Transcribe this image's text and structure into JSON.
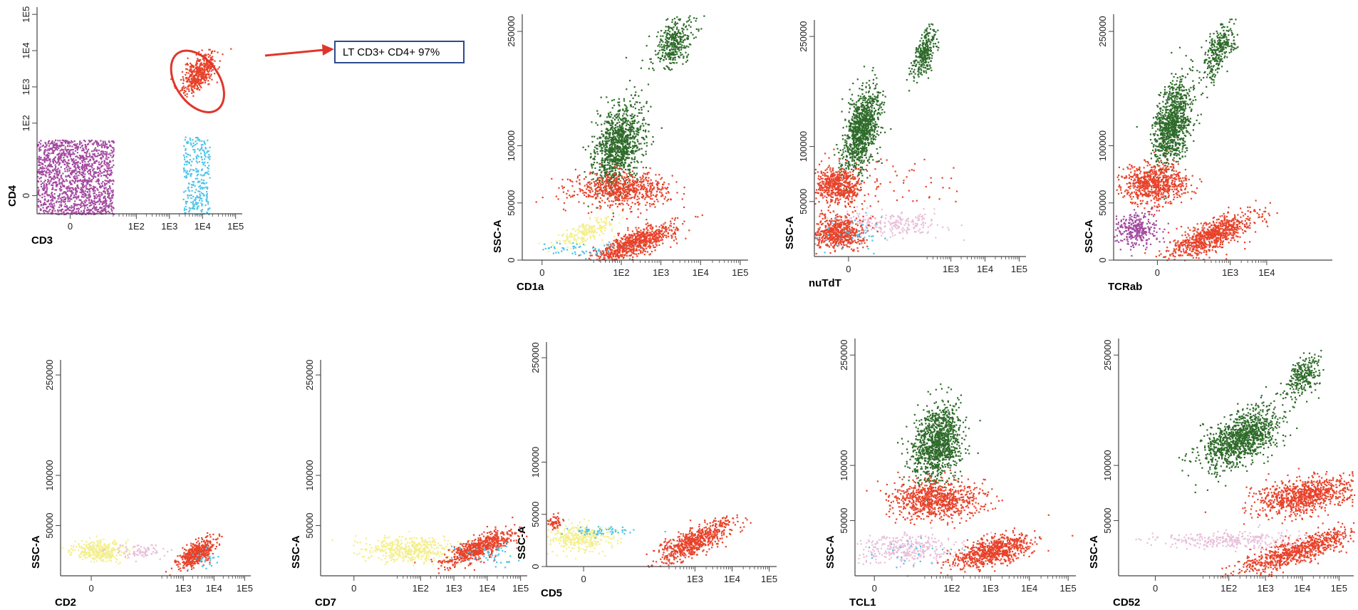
{
  "figure": {
    "annotation": "LT CD3+ CD4+ 97%",
    "colors": {
      "purple": "#a34aa0",
      "cyan": "#4ec3e8",
      "red": "#e8422a",
      "green": "#2e6b2a",
      "yellow": "#f4ef8c",
      "pink": "#e8bfd9",
      "axis": "#444444",
      "gate": "#e0362a",
      "callout_border": "#2e4a8c"
    }
  },
  "chart_data": [
    {
      "id": "cd3_cd4",
      "type": "scatter",
      "title": "",
      "xlabel": "CD3",
      "ylabel": "CD4",
      "xlim": [
        -1,
        5.2
      ],
      "ylim": [
        -0.5,
        5.2
      ],
      "xticks": [
        {
          "v": 0,
          "t": "0"
        },
        {
          "v": 2,
          "t": "1E2"
        },
        {
          "v": 3,
          "t": "1E3"
        },
        {
          "v": 4,
          "t": "1E4"
        },
        {
          "v": 5,
          "t": "1E5"
        }
      ],
      "yticks": [
        {
          "v": 0,
          "t": "0"
        },
        {
          "v": 2,
          "t": "1E2"
        },
        {
          "v": 3,
          "t": "1E3"
        },
        {
          "v": 4,
          "t": "1E4"
        },
        {
          "v": 5,
          "t": "1E5"
        }
      ],
      "gate": {
        "label": "LT CD3+ CD4+ 97%",
        "cx": 3.85,
        "cy": 3.15,
        "rx": 0.65,
        "ry": 0.95,
        "rot": -35
      },
      "series": [
        {
          "color": "purple",
          "n": 1500,
          "dist": "box",
          "x": [
            -1,
            1.3
          ],
          "y": [
            -0.5,
            1.55
          ]
        },
        {
          "color": "cyan",
          "n": 280,
          "dist": "box",
          "x": [
            3.4,
            4.2
          ],
          "y": [
            -0.5,
            1.65
          ]
        },
        {
          "color": "red",
          "n": 450,
          "dist": "ell",
          "cx": 3.9,
          "cy": 3.4,
          "rx": 0.35,
          "ry": 0.65,
          "rot": -40
        }
      ]
    },
    {
      "id": "cd1a_ssc",
      "type": "scatter",
      "title": "",
      "xlabel": "CD1a",
      "ylabel": "SSC-A",
      "xlim": [
        -0.5,
        5.2
      ],
      "ylim": [
        0,
        4.3
      ],
      "xticks": [
        {
          "v": 0,
          "t": "0"
        },
        {
          "v": 2,
          "t": "1E2"
        },
        {
          "v": 3,
          "t": "1E3"
        },
        {
          "v": 4,
          "t": "1E4"
        },
        {
          "v": 5,
          "t": "1E5"
        }
      ],
      "yticks": [
        {
          "v": 0,
          "t": "0"
        },
        {
          "v": 1,
          "t": "50000"
        },
        {
          "v": 2,
          "t": "100000"
        },
        {
          "v": 4,
          "t": "250000"
        }
      ],
      "series": [
        {
          "color": "green",
          "n": 1100,
          "dist": "ell",
          "cx": 1.9,
          "cy": 2.0,
          "rx": 0.8,
          "ry": 0.55,
          "rot": 60
        },
        {
          "color": "green",
          "n": 350,
          "dist": "ell",
          "cx": 3.3,
          "cy": 3.8,
          "rx": 0.6,
          "ry": 0.35,
          "rot": 30
        },
        {
          "color": "yellow",
          "n": 220,
          "dist": "ell",
          "cx": 1.1,
          "cy": 0.5,
          "rx": 0.8,
          "ry": 0.15,
          "rot": 15
        },
        {
          "color": "red",
          "n": 650,
          "dist": "ell",
          "cx": 2.0,
          "cy": 1.25,
          "rx": 1.2,
          "ry": 0.3,
          "rot": 0
        },
        {
          "color": "red",
          "n": 800,
          "dist": "ell",
          "cx": 2.3,
          "cy": 0.3,
          "rx": 1.1,
          "ry": 0.2,
          "rot": 15
        },
        {
          "color": "cyan",
          "n": 60,
          "dist": "ell",
          "cx": 1.0,
          "cy": 0.2,
          "rx": 1.2,
          "ry": 0.12,
          "rot": 0
        }
      ]
    },
    {
      "id": "nutdt_ssc",
      "type": "scatter",
      "title": "",
      "xlabel": "nuTdT",
      "ylabel": "SSC-A",
      "xlim": [
        -1,
        5.2
      ],
      "ylim": [
        0,
        4.3
      ],
      "xticks": [
        {
          "v": 0,
          "t": "0"
        },
        {
          "v": 3,
          "t": "1E3"
        },
        {
          "v": 4,
          "t": "1E4"
        },
        {
          "v": 5,
          "t": "1E5"
        }
      ],
      "yticks": [
        {
          "v": 1,
          "t": "50000"
        },
        {
          "v": 2,
          "t": "100000"
        },
        {
          "v": 4,
          "t": "250000"
        }
      ],
      "series": [
        {
          "color": "green",
          "n": 1000,
          "dist": "ell",
          "cx": 0.35,
          "cy": 2.3,
          "rx": 0.8,
          "ry": 0.45,
          "rot": 65
        },
        {
          "color": "green",
          "n": 300,
          "dist": "ell",
          "cx": 2.2,
          "cy": 3.7,
          "rx": 0.55,
          "ry": 0.25,
          "rot": 55
        },
        {
          "color": "red",
          "n": 550,
          "dist": "ell",
          "cx": -0.3,
          "cy": 1.3,
          "rx": 0.7,
          "ry": 0.35,
          "rot": 0
        },
        {
          "color": "red",
          "n": 40,
          "dist": "box",
          "x": [
            0.5,
            3.3
          ],
          "y": [
            1.0,
            1.8
          ]
        },
        {
          "color": "pink",
          "n": 250,
          "dist": "ell",
          "cx": 1.2,
          "cy": 0.6,
          "rx": 1.6,
          "ry": 0.2,
          "rot": 0
        },
        {
          "color": "red",
          "n": 600,
          "dist": "ell",
          "cx": -0.3,
          "cy": 0.45,
          "rx": 0.7,
          "ry": 0.3,
          "rot": 0
        },
        {
          "color": "cyan",
          "n": 50,
          "dist": "ell",
          "cx": 0.0,
          "cy": 0.4,
          "rx": 1.2,
          "ry": 0.3,
          "rot": 0
        }
      ]
    },
    {
      "id": "tcrab_ssc",
      "type": "scatter",
      "title": "",
      "xlabel": "TCRab",
      "ylabel": "SSC-A",
      "xlim": [
        -1.2,
        4.8
      ],
      "ylim": [
        0,
        4.3
      ],
      "xticks": [
        {
          "v": 0,
          "t": "0"
        },
        {
          "v": 2,
          "t": "1E3"
        },
        {
          "v": 3,
          "t": "1E4"
        }
      ],
      "yticks": [
        {
          "v": 0,
          "t": "0"
        },
        {
          "v": 1,
          "t": "50000"
        },
        {
          "v": 2,
          "t": "100000"
        },
        {
          "v": 4,
          "t": "250000"
        }
      ],
      "series": [
        {
          "color": "green",
          "n": 1000,
          "dist": "ell",
          "cx": 0.4,
          "cy": 2.4,
          "rx": 0.8,
          "ry": 0.45,
          "rot": 65
        },
        {
          "color": "green",
          "n": 300,
          "dist": "ell",
          "cx": 1.7,
          "cy": 3.7,
          "rx": 0.6,
          "ry": 0.28,
          "rot": 50
        },
        {
          "color": "red",
          "n": 700,
          "dist": "ell",
          "cx": -0.1,
          "cy": 1.35,
          "rx": 0.9,
          "ry": 0.35,
          "rot": 0
        },
        {
          "color": "purple",
          "n": 300,
          "dist": "ell",
          "cx": -0.6,
          "cy": 0.55,
          "rx": 0.6,
          "ry": 0.3,
          "rot": 0
        },
        {
          "color": "red",
          "n": 800,
          "dist": "ell",
          "cx": 1.5,
          "cy": 0.45,
          "rx": 1.2,
          "ry": 0.25,
          "rot": 15
        }
      ]
    },
    {
      "id": "cd2_ssc",
      "type": "scatter",
      "title": "",
      "xlabel": "CD2",
      "ylabel": "SSC-A",
      "xlim": [
        -1,
        5.2
      ],
      "ylim": [
        0,
        4.3
      ],
      "xticks": [
        {
          "v": 0,
          "t": "0"
        },
        {
          "v": 3,
          "t": "1E3"
        },
        {
          "v": 4,
          "t": "1E4"
        },
        {
          "v": 5,
          "t": "1E5"
        }
      ],
      "yticks": [
        {
          "v": 1,
          "t": "50000"
        },
        {
          "v": 2,
          "t": "100000"
        },
        {
          "v": 4,
          "t": "250000"
        }
      ],
      "series": [
        {
          "color": "yellow",
          "n": 350,
          "dist": "ell",
          "cx": 0.2,
          "cy": 0.5,
          "rx": 0.8,
          "ry": 0.2,
          "rot": 0
        },
        {
          "color": "pink",
          "n": 80,
          "dist": "ell",
          "cx": 1.7,
          "cy": 0.5,
          "rx": 1.1,
          "ry": 0.15,
          "rot": 0
        },
        {
          "color": "red",
          "n": 500,
          "dist": "ell",
          "cx": 3.4,
          "cy": 0.45,
          "rx": 0.6,
          "ry": 0.2,
          "rot": 20
        },
        {
          "color": "cyan",
          "n": 25,
          "dist": "ell",
          "cx": 3.6,
          "cy": 0.35,
          "rx": 0.5,
          "ry": 0.2,
          "rot": 0
        }
      ]
    },
    {
      "id": "cd7_ssc",
      "type": "scatter",
      "title": "",
      "xlabel": "CD7",
      "ylabel": "SSC-A",
      "xlim": [
        -1,
        5.2
      ],
      "ylim": [
        0,
        4.3
      ],
      "xticks": [
        {
          "v": 0,
          "t": "0"
        },
        {
          "v": 2,
          "t": "1E2"
        },
        {
          "v": 3,
          "t": "1E3"
        },
        {
          "v": 4,
          "t": "1E4"
        },
        {
          "v": 5,
          "t": "1E5"
        }
      ],
      "yticks": [
        {
          "v": 1,
          "t": "50000"
        },
        {
          "v": 2,
          "t": "100000"
        },
        {
          "v": 4,
          "t": "250000"
        }
      ],
      "series": [
        {
          "color": "yellow",
          "n": 450,
          "dist": "ell",
          "cx": 1.7,
          "cy": 0.55,
          "rx": 1.3,
          "ry": 0.25,
          "rot": 0
        },
        {
          "color": "red",
          "n": 650,
          "dist": "ell",
          "cx": 3.7,
          "cy": 0.55,
          "rx": 1.1,
          "ry": 0.22,
          "rot": 15
        },
        {
          "color": "cyan",
          "n": 50,
          "dist": "ell",
          "cx": 4.0,
          "cy": 0.45,
          "rx": 0.9,
          "ry": 0.25,
          "rot": 0
        }
      ]
    },
    {
      "id": "cd5_ssc",
      "type": "scatter",
      "title": "",
      "xlabel": "CD5",
      "ylabel": "SSC-A",
      "xlim": [
        -1,
        5.2
      ],
      "ylim": [
        0,
        4.3
      ],
      "xticks": [
        {
          "v": 0,
          "t": "0"
        },
        {
          "v": 3,
          "t": "1E3"
        },
        {
          "v": 4,
          "t": "1E4"
        },
        {
          "v": 5,
          "t": "1E5"
        }
      ],
      "yticks": [
        {
          "v": 0,
          "t": "0"
        },
        {
          "v": 1,
          "t": "50000"
        },
        {
          "v": 2,
          "t": "100000"
        },
        {
          "v": 4,
          "t": "250000"
        }
      ],
      "series": [
        {
          "color": "yellow",
          "n": 350,
          "dist": "ell",
          "cx": -0.1,
          "cy": 0.55,
          "rx": 0.9,
          "ry": 0.25,
          "rot": 0
        },
        {
          "color": "cyan",
          "n": 60,
          "dist": "ell",
          "cx": 0.5,
          "cy": 0.7,
          "rx": 1.0,
          "ry": 0.1,
          "rot": 0
        },
        {
          "color": "red",
          "n": 60,
          "dist": "ell",
          "cx": -0.8,
          "cy": 0.85,
          "rx": 0.2,
          "ry": 0.15,
          "rot": 0
        },
        {
          "color": "red",
          "n": 650,
          "dist": "ell",
          "cx": 3.0,
          "cy": 0.5,
          "rx": 1.1,
          "ry": 0.25,
          "rot": 20
        }
      ]
    },
    {
      "id": "tcl1_ssc",
      "type": "scatter",
      "title": "",
      "xlabel": "TCL1",
      "ylabel": "SSC-A",
      "xlim": [
        -0.5,
        5.2
      ],
      "ylim": [
        0,
        4.3
      ],
      "xticks": [
        {
          "v": 0,
          "t": "0"
        },
        {
          "v": 2,
          "t": "1E2"
        },
        {
          "v": 3,
          "t": "1E3"
        },
        {
          "v": 4,
          "t": "1E4"
        },
        {
          "v": 5,
          "t": "1E5"
        }
      ],
      "yticks": [
        {
          "v": 1,
          "t": "50000"
        },
        {
          "v": 2,
          "t": "100000"
        },
        {
          "v": 4,
          "t": "250000"
        }
      ],
      "series": [
        {
          "color": "green",
          "n": 1100,
          "dist": "ell",
          "cx": 1.6,
          "cy": 2.4,
          "rx": 0.75,
          "ry": 0.55,
          "rot": 60
        },
        {
          "color": "red",
          "n": 800,
          "dist": "ell",
          "cx": 1.6,
          "cy": 1.4,
          "rx": 1.2,
          "ry": 0.35,
          "rot": 0
        },
        {
          "color": "pink",
          "n": 350,
          "dist": "ell",
          "cx": 0.8,
          "cy": 0.5,
          "rx": 1.3,
          "ry": 0.25,
          "rot": 0
        },
        {
          "color": "red",
          "n": 750,
          "dist": "ell",
          "cx": 3.0,
          "cy": 0.45,
          "rx": 1.0,
          "ry": 0.25,
          "rot": 10
        },
        {
          "color": "cyan",
          "n": 25,
          "dist": "ell",
          "cx": 1.0,
          "cy": 0.4,
          "rx": 1.2,
          "ry": 0.25,
          "rot": 0
        }
      ]
    },
    {
      "id": "cd52_ssc",
      "type": "scatter",
      "title": "",
      "xlabel": "CD52",
      "ylabel": "SSC-A",
      "xlim": [
        -1,
        5.4
      ],
      "ylim": [
        0,
        4.3
      ],
      "xticks": [
        {
          "v": 0,
          "t": "0"
        },
        {
          "v": 2,
          "t": "1E2"
        },
        {
          "v": 3,
          "t": "1E3"
        },
        {
          "v": 4,
          "t": "1E4"
        },
        {
          "v": 5,
          "t": "1E5"
        }
      ],
      "yticks": [
        {
          "v": 1,
          "t": "50000"
        },
        {
          "v": 2,
          "t": "100000"
        },
        {
          "v": 4,
          "t": "250000"
        }
      ],
      "series": [
        {
          "color": "green",
          "n": 1100,
          "dist": "ell",
          "cx": 2.3,
          "cy": 2.5,
          "rx": 1.1,
          "ry": 0.45,
          "rot": 20
        },
        {
          "color": "green",
          "n": 250,
          "dist": "ell",
          "cx": 4.0,
          "cy": 3.6,
          "rx": 0.5,
          "ry": 0.3,
          "rot": 30
        },
        {
          "color": "red",
          "n": 850,
          "dist": "ell",
          "cx": 4.0,
          "cy": 1.45,
          "rx": 1.3,
          "ry": 0.33,
          "rot": 5
        },
        {
          "color": "pink",
          "n": 300,
          "dist": "ell",
          "cx": 2.2,
          "cy": 0.65,
          "rx": 2.2,
          "ry": 0.15,
          "rot": 0
        },
        {
          "color": "red",
          "n": 750,
          "dist": "ell",
          "cx": 3.8,
          "cy": 0.45,
          "rx": 1.6,
          "ry": 0.22,
          "rot": 12
        }
      ]
    }
  ]
}
